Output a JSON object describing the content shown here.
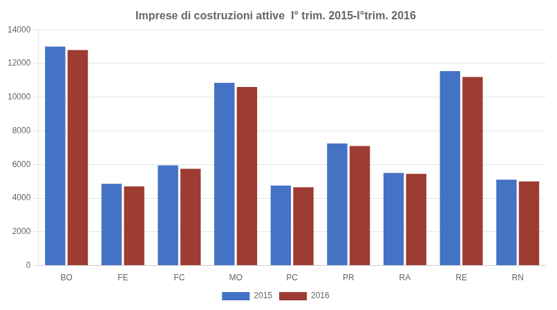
{
  "chart_data": {
    "type": "bar",
    "title": "Imprese di costruzioni attive  I° trim. 2015-I°trim. 2016",
    "categories": [
      "BO",
      "FE",
      "FC",
      "MO",
      "PC",
      "PR",
      "RA",
      "RE",
      "RN"
    ],
    "series": [
      {
        "name": "2015",
        "color": "#4472C4",
        "values": [
          13000,
          4850,
          5950,
          10850,
          4750,
          7250,
          5500,
          11550,
          5100
        ]
      },
      {
        "name": "2016",
        "color": "#9E3B32",
        "values": [
          12800,
          4700,
          5750,
          10600,
          4650,
          7100,
          5450,
          11200,
          5000
        ]
      }
    ],
    "ylim": [
      0,
      14000
    ],
    "yticks": [
      0,
      2000,
      4000,
      6000,
      8000,
      10000,
      12000,
      14000
    ],
    "grid": true,
    "legend": "bottom"
  }
}
